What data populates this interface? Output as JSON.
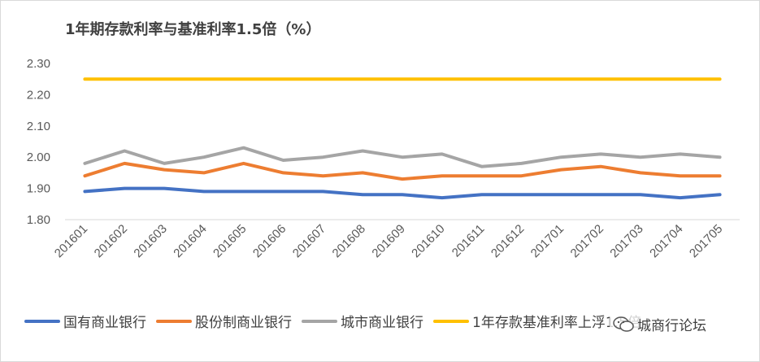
{
  "chart_data": {
    "type": "line",
    "title": "1年期存款利率与基准利率1.5倍（%）",
    "categories": [
      "201601",
      "201602",
      "201603",
      "201604",
      "201605",
      "201606",
      "201607",
      "201608",
      "201609",
      "201610",
      "201611",
      "201612",
      "201701",
      "201702",
      "201703",
      "201704",
      "201705"
    ],
    "ylim": [
      1.8,
      2.3
    ],
    "y_ticks": [
      "1.80",
      "1.90",
      "2.00",
      "2.10",
      "2.20",
      "2.30"
    ],
    "grid": false,
    "legend_position": "bottom",
    "series": [
      {
        "name": "国有商业银行",
        "color": "#4472c4",
        "values": [
          1.89,
          1.9,
          1.9,
          1.89,
          1.89,
          1.89,
          1.89,
          1.88,
          1.88,
          1.87,
          1.88,
          1.88,
          1.88,
          1.88,
          1.88,
          1.87,
          1.88
        ]
      },
      {
        "name": "股份制商业银行",
        "color": "#ed7d31",
        "values": [
          1.94,
          1.98,
          1.96,
          1.95,
          1.98,
          1.95,
          1.94,
          1.95,
          1.93,
          1.94,
          1.94,
          1.94,
          1.96,
          1.97,
          1.95,
          1.94,
          1.94
        ]
      },
      {
        "name": "城市商业银行",
        "color": "#a5a5a5",
        "values": [
          1.98,
          2.02,
          1.98,
          2.0,
          2.03,
          1.99,
          2.0,
          2.02,
          2.0,
          2.01,
          1.97,
          1.98,
          2.0,
          2.01,
          2.0,
          2.01,
          2.0
        ]
      },
      {
        "name": "1年存款基准利率上浮1.5倍",
        "color": "#ffc000",
        "values": [
          2.25,
          2.25,
          2.25,
          2.25,
          2.25,
          2.25,
          2.25,
          2.25,
          2.25,
          2.25,
          2.25,
          2.25,
          2.25,
          2.25,
          2.25,
          2.25,
          2.25
        ]
      }
    ]
  },
  "watermark": {
    "icon": "wechat-icon",
    "text": "城商行论坛"
  }
}
